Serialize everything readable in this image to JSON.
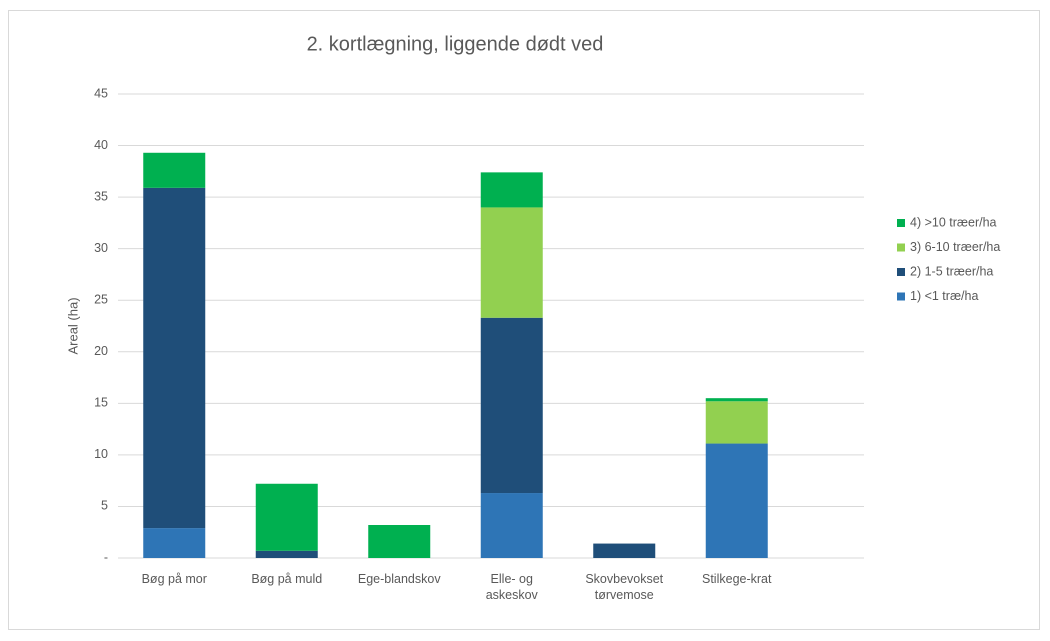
{
  "chart_data": {
    "type": "stacked_bar",
    "title": "2. kortlægning, liggende dødt ved",
    "y_label": "Areal (ha)",
    "categories": [
      "Bøg på mor",
      "Bøg på muld",
      "Ege-blandskov",
      "Elle- og askeskov",
      "Skovbevokset tørvemose",
      "Stilkege-krat"
    ],
    "series": [
      {
        "name": "1) <1 træ/ha",
        "color": "#2e75b6",
        "values": [
          2.9,
          0,
          0,
          6.3,
          0,
          11.1
        ]
      },
      {
        "name": "2) 1-5 træer/ha",
        "color": "#1f4e79",
        "values": [
          33.0,
          0.7,
          0,
          17.0,
          1.4,
          0
        ]
      },
      {
        "name": "3) 6-10 træer/ha",
        "color": "#92d050",
        "values": [
          0,
          0,
          0,
          10.7,
          0,
          4.1
        ]
      },
      {
        "name": "4) >10 træer/ha",
        "color": "#00b050",
        "values": [
          3.4,
          6.5,
          3.2,
          3.4,
          0,
          0.3
        ]
      }
    ],
    "ylim": [
      0,
      45
    ],
    "yticks": [
      {
        "value": 0,
        "label": "-"
      },
      5,
      10,
      15,
      20,
      25,
      30,
      35,
      40,
      45
    ],
    "grid": true,
    "legend": "right"
  }
}
